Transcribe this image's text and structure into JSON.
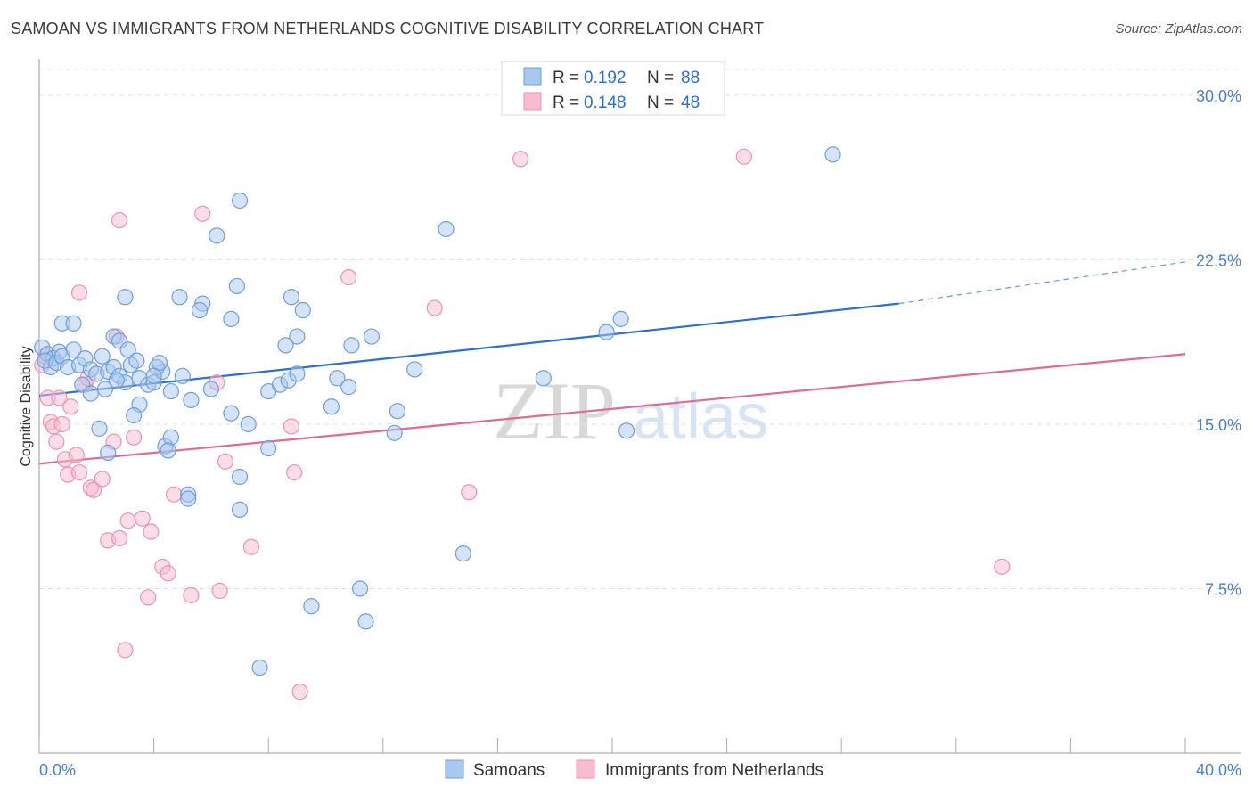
{
  "header": {
    "title": "SAMOAN VS IMMIGRANTS FROM NETHERLANDS COGNITIVE DISABILITY CORRELATION CHART",
    "source": "Source: ZipAtlas.com"
  },
  "legend_top": {
    "rows": [
      {
        "r_label": "R = ",
        "r_value": "0.192",
        "n_label": "N = ",
        "n_value": "88"
      },
      {
        "r_label": "R = ",
        "r_value": "0.148",
        "n_label": "N = ",
        "n_value": "48"
      }
    ]
  },
  "watermark": {
    "zip": "ZIP",
    "atlas": "atlas"
  },
  "colors": {
    "samoans_fill": "#a9c8f0",
    "samoans_stroke": "#6f9fd8",
    "samoans_line": "#2b6fd0",
    "neth_fill": "#f7bcd0",
    "neth_stroke": "#ec93b2",
    "neth_line": "#e06a95",
    "tick_label": "#4a7fd0",
    "grid": "#e0e0e0"
  },
  "chart_data": {
    "type": "scatter",
    "title": "SAMOAN VS IMMIGRANTS FROM NETHERLANDS COGNITIVE DISABILITY CORRELATION CHART",
    "xlabel": "",
    "ylabel": "Cognitive Disability",
    "xlim": [
      0,
      40
    ],
    "ylim": [
      0,
      31.5
    ],
    "x_tick_labels": [
      "0.0%",
      "40.0%"
    ],
    "y_ticks": [
      7.5,
      15.0,
      22.5,
      30.0
    ],
    "y_tick_labels": [
      "7.5%",
      "15.0%",
      "22.5%",
      "30.0%"
    ],
    "grid": true,
    "legend_position": "bottom-center",
    "series": [
      {
        "name": "Samoans",
        "R": 0.192,
        "N": 88,
        "trend": {
          "x0": 0,
          "y0": 16.3,
          "x1": 30,
          "y1": 20.5,
          "dashed_to_x": 40,
          "dashed_to_y": 22.4
        },
        "points": [
          [
            0.1,
            18.5
          ],
          [
            0.3,
            18.2
          ],
          [
            0.5,
            18.0
          ],
          [
            0.7,
            18.3
          ],
          [
            0.4,
            17.6
          ],
          [
            0.2,
            17.9
          ],
          [
            0.6,
            17.8
          ],
          [
            0.8,
            18.1
          ],
          [
            1.0,
            17.6
          ],
          [
            1.2,
            18.4
          ],
          [
            1.4,
            17.7
          ],
          [
            1.6,
            18.0
          ],
          [
            1.8,
            17.5
          ],
          [
            2.0,
            17.3
          ],
          [
            2.2,
            18.1
          ],
          [
            2.4,
            17.4
          ],
          [
            2.6,
            17.6
          ],
          [
            2.8,
            17.2
          ],
          [
            3.0,
            16.9
          ],
          [
            3.2,
            17.7
          ],
          [
            1.5,
            16.8
          ],
          [
            1.8,
            16.4
          ],
          [
            2.3,
            16.6
          ],
          [
            2.7,
            17.0
          ],
          [
            3.5,
            17.1
          ],
          [
            3.8,
            16.8
          ],
          [
            4.0,
            16.9
          ],
          [
            4.3,
            17.4
          ],
          [
            4.6,
            16.5
          ],
          [
            5.0,
            17.2
          ],
          [
            5.3,
            16.1
          ],
          [
            6.0,
            16.6
          ],
          [
            6.7,
            15.5
          ],
          [
            7.3,
            15.0
          ],
          [
            8.0,
            16.5
          ],
          [
            8.4,
            16.8
          ],
          [
            8.7,
            17.0
          ],
          [
            9.0,
            17.3
          ],
          [
            10.2,
            15.8
          ],
          [
            10.4,
            17.1
          ],
          [
            10.8,
            16.7
          ],
          [
            12.5,
            15.6
          ],
          [
            12.4,
            14.6
          ],
          [
            3.5,
            15.9
          ],
          [
            3.3,
            15.4
          ],
          [
            2.1,
            14.8
          ],
          [
            4.4,
            14.0
          ],
          [
            4.6,
            14.4
          ],
          [
            4.5,
            13.8
          ],
          [
            2.4,
            13.7
          ],
          [
            5.2,
            11.8
          ],
          [
            5.2,
            11.6
          ],
          [
            7.0,
            12.6
          ],
          [
            8.0,
            13.9
          ],
          [
            7.0,
            11.1
          ],
          [
            0.8,
            19.6
          ],
          [
            1.2,
            19.6
          ],
          [
            2.6,
            19.0
          ],
          [
            2.8,
            18.8
          ],
          [
            3.1,
            18.4
          ],
          [
            3.4,
            17.9
          ],
          [
            4.1,
            17.6
          ],
          [
            4.2,
            17.8
          ],
          [
            4.0,
            17.2
          ],
          [
            3.0,
            20.8
          ],
          [
            4.9,
            20.8
          ],
          [
            5.7,
            20.5
          ],
          [
            5.6,
            20.2
          ],
          [
            6.7,
            19.8
          ],
          [
            6.9,
            21.3
          ],
          [
            8.8,
            20.8
          ],
          [
            8.6,
            18.6
          ],
          [
            9.2,
            20.2
          ],
          [
            9.0,
            19.0
          ],
          [
            10.9,
            18.6
          ],
          [
            11.6,
            19.0
          ],
          [
            13.1,
            17.5
          ],
          [
            7.0,
            25.2
          ],
          [
            6.2,
            23.6
          ],
          [
            14.2,
            23.9
          ],
          [
            17.6,
            17.1
          ],
          [
            19.8,
            19.2
          ],
          [
            20.3,
            19.8
          ],
          [
            20.5,
            14.7
          ],
          [
            14.8,
            9.1
          ],
          [
            11.2,
            7.5
          ],
          [
            9.5,
            6.7
          ],
          [
            11.4,
            6.0
          ],
          [
            7.7,
            3.9
          ],
          [
            27.7,
            27.3
          ]
        ]
      },
      {
        "name": "Immigrants from Netherlands",
        "R": 0.148,
        "N": 48,
        "trend": {
          "x0": 0,
          "y0": 13.2,
          "x1": 40,
          "y1": 18.2
        },
        "points": [
          [
            0.1,
            17.7
          ],
          [
            0.2,
            18.1
          ],
          [
            0.3,
            16.2
          ],
          [
            0.4,
            15.1
          ],
          [
            0.5,
            14.9
          ],
          [
            0.6,
            14.2
          ],
          [
            0.7,
            16.2
          ],
          [
            0.8,
            15.0
          ],
          [
            0.9,
            13.4
          ],
          [
            1.0,
            12.7
          ],
          [
            1.1,
            15.8
          ],
          [
            1.3,
            13.6
          ],
          [
            1.4,
            12.8
          ],
          [
            1.6,
            16.8
          ],
          [
            1.7,
            17.1
          ],
          [
            1.8,
            12.1
          ],
          [
            1.9,
            12.0
          ],
          [
            2.2,
            12.5
          ],
          [
            2.4,
            9.7
          ],
          [
            2.6,
            14.2
          ],
          [
            2.8,
            9.8
          ],
          [
            3.1,
            10.6
          ],
          [
            3.3,
            14.4
          ],
          [
            3.6,
            10.7
          ],
          [
            3.9,
            10.1
          ],
          [
            4.3,
            8.5
          ],
          [
            4.5,
            8.2
          ],
          [
            4.7,
            11.8
          ],
          [
            5.3,
            7.2
          ],
          [
            3.8,
            7.1
          ],
          [
            6.3,
            7.4
          ],
          [
            6.5,
            13.3
          ],
          [
            6.2,
            16.9
          ],
          [
            7.4,
            9.4
          ],
          [
            8.8,
            14.9
          ],
          [
            8.9,
            12.8
          ],
          [
            9.1,
            2.8
          ],
          [
            2.7,
            19.0
          ],
          [
            1.4,
            21.0
          ],
          [
            2.8,
            24.3
          ],
          [
            5.7,
            24.6
          ],
          [
            10.8,
            21.7
          ],
          [
            13.8,
            20.3
          ],
          [
            15.0,
            11.9
          ],
          [
            16.8,
            27.1
          ],
          [
            24.6,
            27.2
          ],
          [
            33.6,
            8.5
          ],
          [
            3.0,
            4.7
          ]
        ]
      }
    ]
  },
  "legend_bottom": {
    "items": [
      {
        "label": "Samoans"
      },
      {
        "label": "Immigrants from Netherlands"
      }
    ]
  }
}
